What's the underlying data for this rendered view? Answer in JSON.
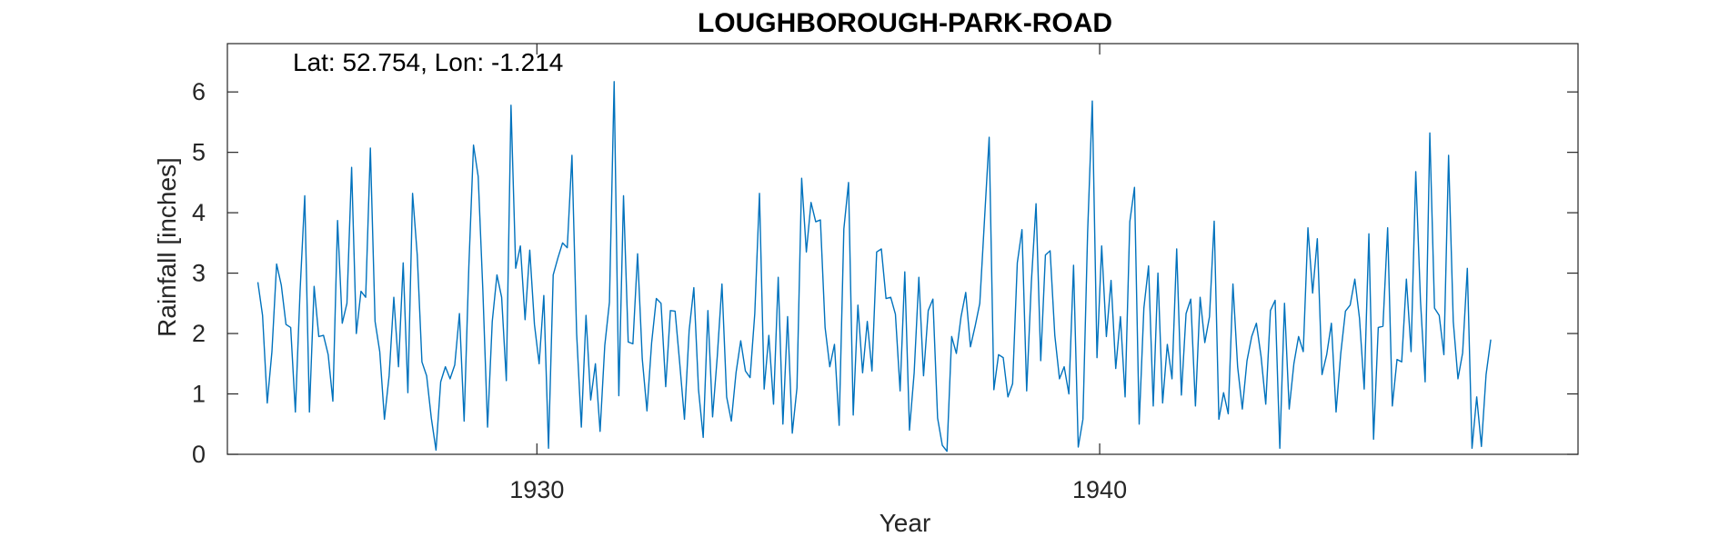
{
  "chart_data": {
    "type": "line",
    "title": "LOUGHBOROUGH-PARK-ROAD",
    "annotation": "Lat: 52.754, Lon: -1.214",
    "xlabel": "Year",
    "ylabel": "Rainfall [inches]",
    "xlim": [
      1924.5,
      1948.5
    ],
    "ylim": [
      0,
      6.8
    ],
    "x_ticks": [
      1930,
      1940
    ],
    "x_tick_labels": [
      "1930",
      "1940"
    ],
    "y_ticks": [
      0,
      1,
      2,
      3,
      4,
      5,
      6
    ],
    "y_tick_labels": [
      "0",
      "1",
      "2",
      "3",
      "4",
      "5",
      "6"
    ],
    "grid": false,
    "box": true,
    "line_color": "#0072BD",
    "series": [
      {
        "x_start": 1925.0417,
        "x_step": 0.0833,
        "values": [
          2.85,
          2.3,
          0.85,
          1.7,
          3.15,
          2.8,
          2.15,
          2.1,
          0.7,
          2.7,
          4.28,
          0.7,
          2.78,
          1.95,
          1.97,
          1.65,
          0.88,
          3.87,
          2.17,
          2.5,
          4.75,
          2.0,
          2.7,
          2.6,
          5.07,
          2.2,
          1.7,
          0.58,
          1.3,
          2.6,
          1.45,
          3.17,
          1.02,
          4.32,
          3.3,
          1.53,
          1.3,
          0.6,
          0.07,
          1.2,
          1.45,
          1.25,
          1.48,
          2.33,
          0.55,
          3.1,
          5.12,
          4.6,
          2.7,
          0.45,
          2.2,
          2.97,
          2.6,
          1.22,
          5.78,
          3.08,
          3.45,
          2.23,
          3.38,
          2.15,
          1.5,
          2.63,
          0.1,
          2.97,
          3.25,
          3.5,
          3.42,
          4.95,
          2.0,
          0.45,
          2.3,
          0.9,
          1.5,
          0.38,
          1.8,
          2.52,
          6.17,
          0.97,
          4.28,
          1.86,
          1.83,
          3.32,
          1.58,
          0.72,
          1.85,
          2.58,
          2.5,
          1.12,
          2.38,
          2.37,
          1.5,
          0.58,
          2.05,
          2.76,
          1.07,
          0.28,
          2.38,
          0.62,
          1.62,
          2.82,
          0.95,
          0.55,
          1.35,
          1.88,
          1.38,
          1.27,
          2.33,
          4.32,
          1.08,
          1.97,
          0.83,
          2.93,
          0.5,
          2.28,
          0.35,
          1.1,
          4.57,
          3.35,
          4.17,
          3.85,
          3.88,
          2.1,
          1.45,
          1.82,
          0.48,
          3.73,
          4.5,
          0.65,
          2.47,
          1.35,
          2.2,
          1.38,
          3.35,
          3.4,
          2.58,
          2.6,
          2.32,
          1.05,
          3.02,
          0.4,
          1.35,
          2.93,
          1.3,
          2.38,
          2.57,
          0.6,
          0.15,
          0.05,
          1.95,
          1.67,
          2.28,
          2.68,
          1.78,
          2.12,
          2.5,
          3.88,
          5.25,
          1.07,
          1.65,
          1.6,
          0.95,
          1.17,
          3.17,
          3.72,
          1.05,
          2.85,
          4.15,
          1.55,
          3.3,
          3.37,
          1.97,
          1.25,
          1.45,
          1.0,
          3.13,
          0.12,
          0.58,
          3.67,
          5.85,
          1.6,
          3.45,
          1.95,
          2.88,
          1.42,
          2.28,
          0.95,
          3.85,
          4.42,
          0.5,
          2.42,
          3.12,
          0.8,
          3.0,
          0.85,
          1.82,
          1.25,
          3.4,
          0.98,
          2.33,
          2.57,
          0.8,
          2.6,
          1.85,
          2.28,
          3.86,
          0.58,
          1.02,
          0.67,
          2.82,
          1.45,
          0.75,
          1.55,
          1.95,
          2.17,
          1.62,
          0.83,
          2.38,
          2.55,
          0.1,
          2.5,
          0.75,
          1.5,
          1.95,
          1.7,
          3.75,
          2.67,
          3.57,
          1.32,
          1.65,
          2.17,
          0.7,
          1.67,
          2.37,
          2.47,
          2.9,
          2.25,
          1.08,
          3.65,
          0.25,
          2.1,
          2.12,
          3.75,
          0.8,
          1.57,
          1.53,
          2.9,
          1.7,
          4.68,
          2.55,
          1.2,
          5.32,
          2.42,
          2.3,
          1.65,
          4.95,
          2.2,
          1.25,
          1.68,
          3.08,
          0.1,
          0.95,
          0.13,
          1.32,
          1.9
        ]
      }
    ]
  }
}
